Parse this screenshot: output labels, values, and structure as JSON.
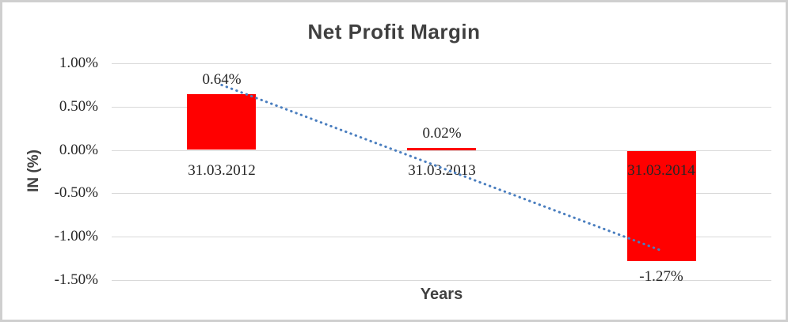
{
  "chart_data": {
    "type": "bar",
    "title": "Net Profit Margin",
    "xlabel": "Years",
    "ylabel": "IN (%)",
    "categories": [
      "31.03.2012",
      "31.03.2013",
      "31.03.2014"
    ],
    "values": [
      0.64,
      0.02,
      -1.27
    ],
    "data_labels": [
      "0.64%",
      "0.02%",
      "-1.27%"
    ],
    "ylim": [
      -1.5,
      1.0
    ],
    "ytick_values": [
      1.0,
      0.5,
      0.0,
      -0.5,
      -1.0,
      -1.5
    ],
    "ytick_labels": [
      "1.00%",
      "0.50%",
      "0.00%",
      "-0.50%",
      "-1.00%",
      "-1.50%"
    ],
    "grid": "horizontal",
    "legend": "none",
    "trendline": {
      "style": "dotted",
      "start_value": 0.75,
      "end_value": -1.16
    },
    "colors": {
      "bar": "#FF0000",
      "trendline": "#4A7EBF",
      "gridline": "#D9D9D9",
      "title_text": "#404040",
      "label_text": "#262626",
      "frame": "#CFCFCF",
      "background": "#FFFFFF"
    }
  }
}
